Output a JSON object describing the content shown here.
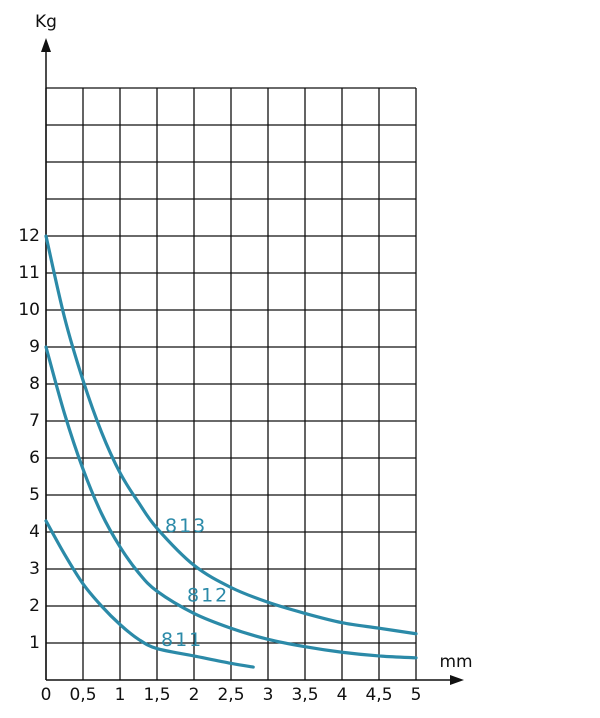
{
  "chart_data": {
    "type": "line",
    "y_label": "Kg",
    "x_label": "mm",
    "xlim": [
      0,
      5
    ],
    "ylim": [
      0,
      16
    ],
    "xticks": [
      0,
      {
        "value": 0.5,
        "label": "0,5"
      },
      1,
      {
        "value": 1.5,
        "label": "1,5"
      },
      2,
      {
        "value": 2.5,
        "label": "2,5"
      },
      3,
      {
        "value": 3.5,
        "label": "3,5"
      },
      4,
      {
        "value": 4.5,
        "label": "4,5"
      },
      5
    ],
    "yticks": [
      1,
      2,
      3,
      4,
      5,
      6,
      7,
      8,
      9,
      10,
      11,
      12
    ],
    "grid": true,
    "series": [
      {
        "name": "813",
        "color": "#2b8aa8",
        "x": [
          0,
          0.25,
          0.5,
          0.75,
          1,
          1.25,
          1.5,
          2,
          2.5,
          3,
          3.5,
          4,
          4.5,
          5
        ],
        "values": [
          12,
          9.8,
          8.1,
          6.7,
          5.6,
          4.8,
          4.1,
          3.1,
          2.5,
          2.1,
          1.8,
          1.55,
          1.4,
          1.25
        ]
      },
      {
        "name": "812",
        "color": "#2b8aa8",
        "x": [
          0,
          0.25,
          0.5,
          0.75,
          1,
          1.25,
          1.5,
          2,
          2.5,
          3,
          3.5,
          4,
          4.5,
          5
        ],
        "values": [
          9,
          7.2,
          5.7,
          4.5,
          3.6,
          2.9,
          2.4,
          1.8,
          1.4,
          1.1,
          0.9,
          0.75,
          0.65,
          0.6
        ]
      },
      {
        "name": "811",
        "color": "#2b8aa8",
        "x": [
          0,
          0.25,
          0.5,
          0.75,
          1,
          1.25,
          1.5,
          2,
          2.5,
          2.8
        ],
        "values": [
          4.3,
          3.4,
          2.6,
          2.0,
          1.5,
          1.1,
          0.85,
          0.65,
          0.45,
          0.35
        ]
      }
    ]
  }
}
